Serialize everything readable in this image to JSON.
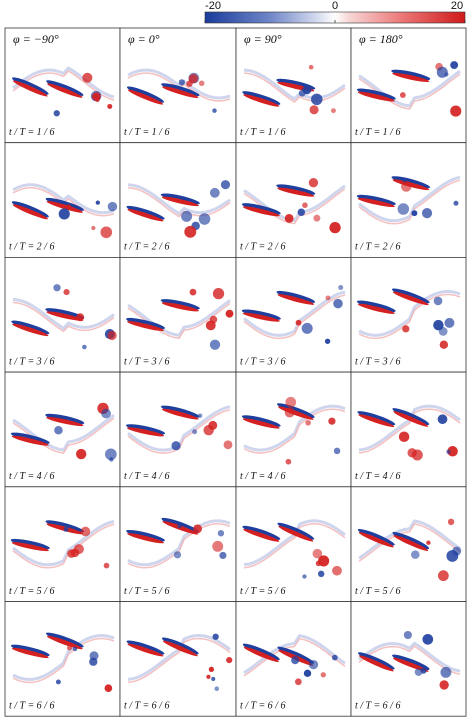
{
  "colorbar": {
    "range": [
      -20,
      20
    ],
    "ticks": [
      -20,
      0,
      20
    ]
  },
  "columns": [
    "φ = −90°",
    "φ = 0°",
    "φ = 90°",
    "φ = 180°"
  ],
  "panels": [
    [
      "t / T = 1 / 6",
      "t / T = 1 / 6",
      "t / T = 1 / 6",
      "t / T = 1 / 6"
    ],
    [
      "t / T = 2 / 6",
      "t / T = 2 / 6",
      "t / T = 2 / 6",
      "t / T = 2 / 6"
    ],
    [
      "t / T = 3 / 6",
      "t / T = 3 / 6",
      "t / T = 3 / 6",
      "t / T = 3 / 6"
    ],
    [
      "t / T = 4 / 6",
      "t / T = 4 / 6",
      "t / T = 4 / 6",
      "t / T = 4 / 6"
    ],
    [
      "t / T = 5 / 6",
      "t / T = 5 / 6",
      "t / T = 5 / 6",
      "t / T = 5 / 6"
    ],
    [
      "t / T = 6 / 6",
      "t / T = 6 / 6",
      "t / T = 6 / 6",
      "t / T = 6 / 6"
    ]
  ]
}
